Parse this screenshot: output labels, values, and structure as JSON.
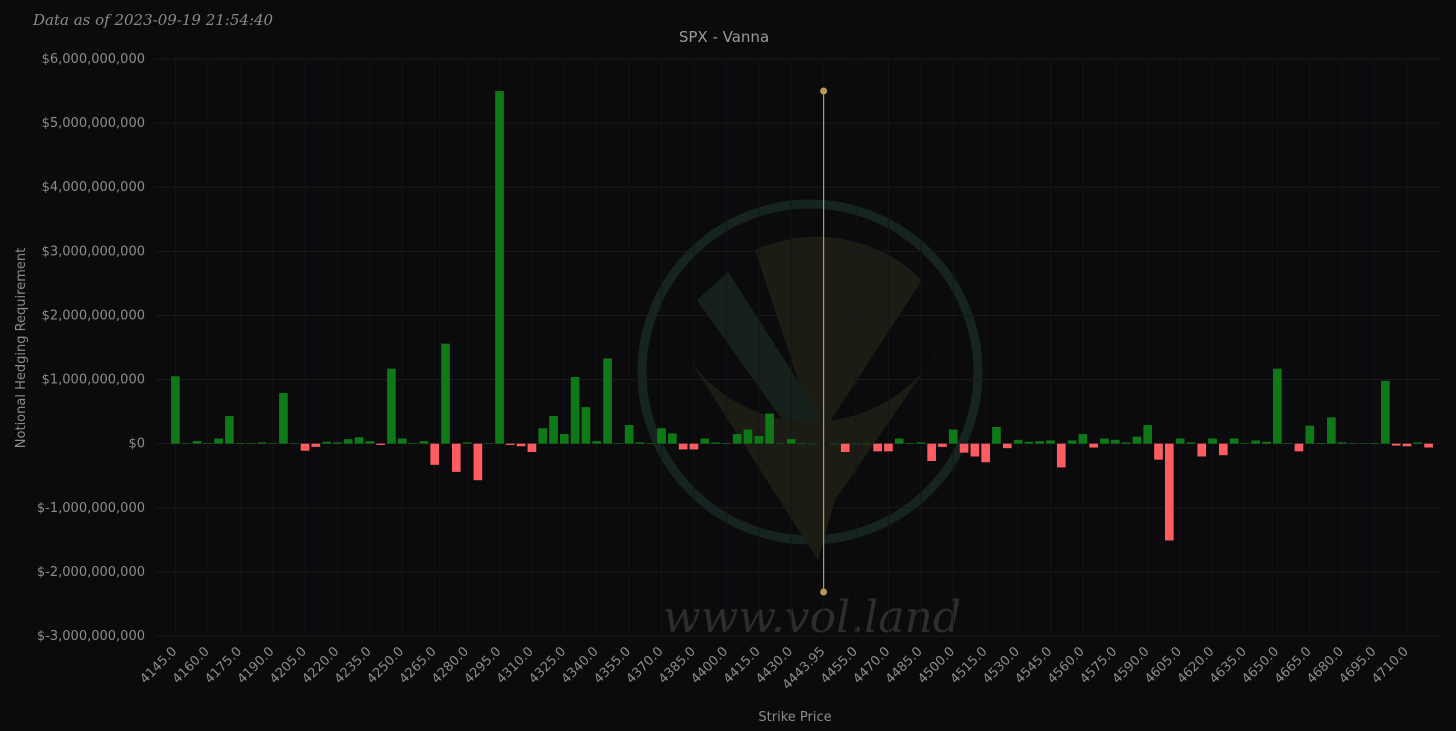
{
  "chart_data": {
    "type": "bar",
    "subtitle": "Data as of 2023-09-19 21:54:40",
    "title": "SPX - Vanna",
    "y_label": "Notional Hedging Requirement",
    "x_label": "Strike Price",
    "watermark": "www.vol.land",
    "spot": 4443.95,
    "categories": [
      "4145.0",
      null,
      null,
      "4160.0",
      null,
      null,
      "4175.0",
      null,
      null,
      "4190.0",
      null,
      null,
      "4205.0",
      null,
      null,
      "4220.0",
      null,
      null,
      "4235.0",
      null,
      null,
      "4250.0",
      null,
      null,
      "4265.0",
      null,
      null,
      "4280.0",
      null,
      null,
      "4295.0",
      null,
      null,
      "4310.0",
      null,
      null,
      "4325.0",
      null,
      null,
      "4340.0",
      null,
      null,
      "4355.0",
      null,
      null,
      "4370.0",
      null,
      null,
      "4385.0",
      null,
      null,
      "4400.0",
      null,
      null,
      "4415.0",
      null,
      null,
      "4430.0",
      null,
      null,
      "4443.95",
      null,
      null,
      "4455.0",
      null,
      null,
      "4470.0",
      null,
      null,
      "4485.0",
      null,
      null,
      "4500.0",
      null,
      null,
      "4515.0",
      null,
      null,
      "4530.0",
      null,
      null,
      "4545.0",
      null,
      null,
      "4560.0",
      null,
      null,
      "4575.0",
      null,
      null,
      "4590.0",
      null,
      null,
      "4605.0",
      null,
      null,
      "4620.0",
      null,
      null,
      "4635.0",
      null,
      null,
      "4650.0",
      null,
      null,
      "4665.0",
      null,
      null,
      "4680.0",
      null,
      null,
      "4695.0",
      null,
      null,
      "4710.0",
      null,
      null
    ],
    "values": [
      1050000000.0,
      2000000.0,
      40000000.0,
      10000000.0,
      80000000.0,
      430000000.0,
      10000000.0,
      10000000.0,
      20000000.0,
      5000000.0,
      790000000.0,
      5000000.0,
      -110000000.0,
      -50000000.0,
      30000000.0,
      20000000.0,
      70000000.0,
      100000000.0,
      40000000.0,
      -20000000.0,
      1170000000.0,
      80000000.0,
      10000000.0,
      40000000.0,
      -330000000.0,
      1560000000.0,
      -440000000.0,
      20000000.0,
      -570000000.0,
      5000000.0,
      5500000000.0,
      -20000000.0,
      -40000000.0,
      -130000000.0,
      240000000.0,
      430000000.0,
      150000000.0,
      1040000000.0,
      570000000.0,
      40000000.0,
      1330000000.0,
      5000000.0,
      290000000.0,
      20000000.0,
      5000000.0,
      240000000.0,
      160000000.0,
      -90000000.0,
      -90000000.0,
      80000000.0,
      20000000.0,
      10000000.0,
      150000000.0,
      220000000.0,
      120000000.0,
      470000000.0,
      5000000.0,
      70000000.0,
      5000000.0,
      0,
      null,
      0,
      -130000000.0,
      0,
      0,
      -120000000.0,
      -120000000.0,
      80000000.0,
      10000000.0,
      20000000.0,
      -270000000.0,
      -50000000.0,
      220000000.0,
      -140000000.0,
      -200000000.0,
      -290000000.0,
      260000000.0,
      -70000000.0,
      60000000.0,
      30000000.0,
      40000000.0,
      50000000.0,
      -370000000.0,
      50000000.0,
      150000000.0,
      -60000000.0,
      80000000.0,
      60000000.0,
      20000000.0,
      110000000.0,
      290000000.0,
      -250000000.0,
      -1510000000.0,
      80000000.0,
      20000000.0,
      -200000000.0,
      80000000.0,
      -180000000.0,
      80000000.0,
      5000000.0,
      50000000.0,
      30000000.0,
      1170000000.0,
      10000000.0,
      -120000000.0,
      280000000.0,
      10000000.0,
      410000000.0,
      20000000.0,
      5000000.0,
      5000000.0,
      10000000.0,
      980000000.0,
      -30000000.0,
      -40000000.0,
      20000000.0,
      -60000000.0
    ],
    "color_positive": "#0e7a17",
    "color_negative": "#ff5c61",
    "spot_color": "#b99a55",
    "ylim": [
      -3000000000.0,
      6000000000.0
    ],
    "yticks": [
      {
        "value": -3000000000.0,
        "label": "$-3,000,000,000"
      },
      {
        "value": -2000000000.0,
        "label": "$-2,000,000,000"
      },
      {
        "value": -1000000000.0,
        "label": "$-1,000,000,000"
      },
      {
        "value": 0,
        "label": "$0"
      },
      {
        "value": 1000000000.0,
        "label": "$1,000,000,000"
      },
      {
        "value": 2000000000.0,
        "label": "$2,000,000,000"
      },
      {
        "value": 3000000000.0,
        "label": "$3,000,000,000"
      },
      {
        "value": 4000000000.0,
        "label": "$4,000,000,000"
      },
      {
        "value": 5000000000.0,
        "label": "$5,000,000,000"
      },
      {
        "value": 6000000000.0,
        "label": "$6,000,000,000"
      }
    ],
    "grid": true
  }
}
